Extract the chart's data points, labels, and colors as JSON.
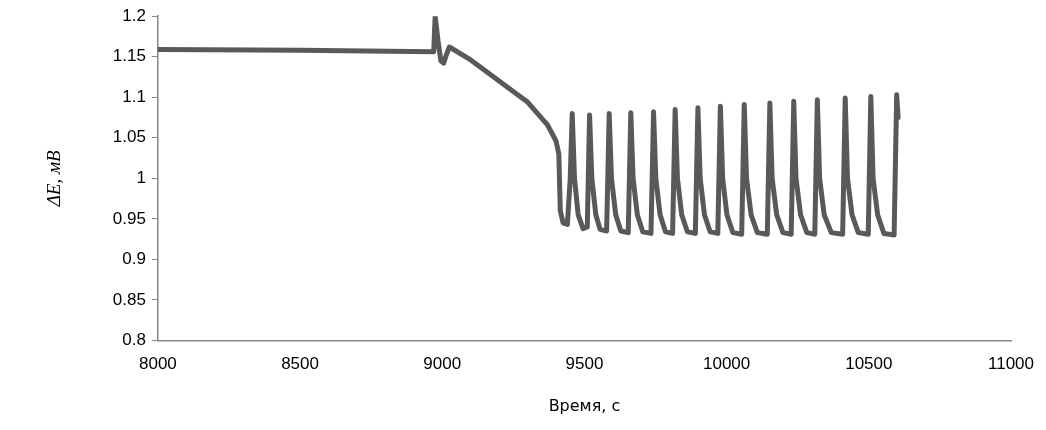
{
  "chart_data": {
    "type": "line",
    "xlabel": "Время, с",
    "ylabel": "ΔE, мВ",
    "xlim": [
      8000,
      11000
    ],
    "xticks": [
      8000,
      8500,
      9000,
      9500,
      10000,
      10500,
      11000
    ],
    "ylim": [
      0.8,
      1.2
    ],
    "yticks": [
      0.8,
      0.85,
      0.9,
      0.95,
      1,
      1.05,
      1.1,
      1.15,
      1.2
    ],
    "grid": false,
    "legend": false,
    "marker": "none",
    "line_style": "solid",
    "series": [
      {
        "color": "#595959",
        "x": [
          8000,
          8500,
          8970,
          8975,
          8985,
          8995,
          9005,
          9012,
          9025,
          9100,
          9200,
          9300,
          9370,
          9400,
          9410,
          9415,
          9425,
          9440,
          9450,
          9457,
          9465,
          9478,
          9495,
          9510,
          9518,
          9526,
          9540,
          9555,
          9578,
          9587,
          9595,
          9610,
          9628,
          9654,
          9663,
          9671,
          9686,
          9705,
          9734,
          9743,
          9751,
          9766,
          9785,
          9810,
          9819,
          9827,
          9842,
          9862,
          9890,
          9899,
          9907,
          9922,
          9942,
          9969,
          9978,
          9986,
          10001,
          10022,
          10053,
          10062,
          10070,
          10086,
          10108,
          10143,
          10152,
          10160,
          10176,
          10198,
          10227,
          10236,
          10244,
          10260,
          10282,
          10310,
          10319,
          10327,
          10343,
          10368,
          10408,
          10417,
          10425,
          10441,
          10463,
          10498,
          10507,
          10515,
          10531,
          10553,
          10589,
          10598,
          10603
        ],
        "values": [
          1.159,
          1.158,
          1.156,
          1.2,
          1.17,
          1.145,
          1.142,
          1.15,
          1.162,
          1.146,
          1.12,
          1.094,
          1.066,
          1.046,
          1.03,
          0.96,
          0.945,
          0.943,
          1.0,
          1.08,
          1.0,
          0.955,
          0.938,
          0.94,
          1.078,
          1.0,
          0.955,
          0.937,
          0.935,
          1.08,
          1.0,
          0.955,
          0.935,
          0.933,
          1.081,
          1.0,
          0.955,
          0.934,
          0.932,
          1.082,
          1.0,
          0.955,
          0.934,
          0.932,
          1.085,
          1.0,
          0.955,
          0.934,
          0.932,
          1.087,
          1.0,
          0.955,
          0.934,
          0.932,
          1.089,
          1.0,
          0.955,
          0.933,
          0.931,
          1.091,
          1.0,
          0.955,
          0.933,
          0.931,
          1.093,
          1.0,
          0.955,
          0.933,
          0.931,
          1.095,
          1.0,
          0.955,
          0.933,
          0.931,
          1.097,
          1.0,
          0.955,
          0.933,
          0.931,
          1.099,
          1.0,
          0.955,
          0.933,
          0.931,
          1.101,
          1.0,
          0.955,
          0.932,
          0.93,
          1.103,
          1.075
        ]
      }
    ]
  }
}
